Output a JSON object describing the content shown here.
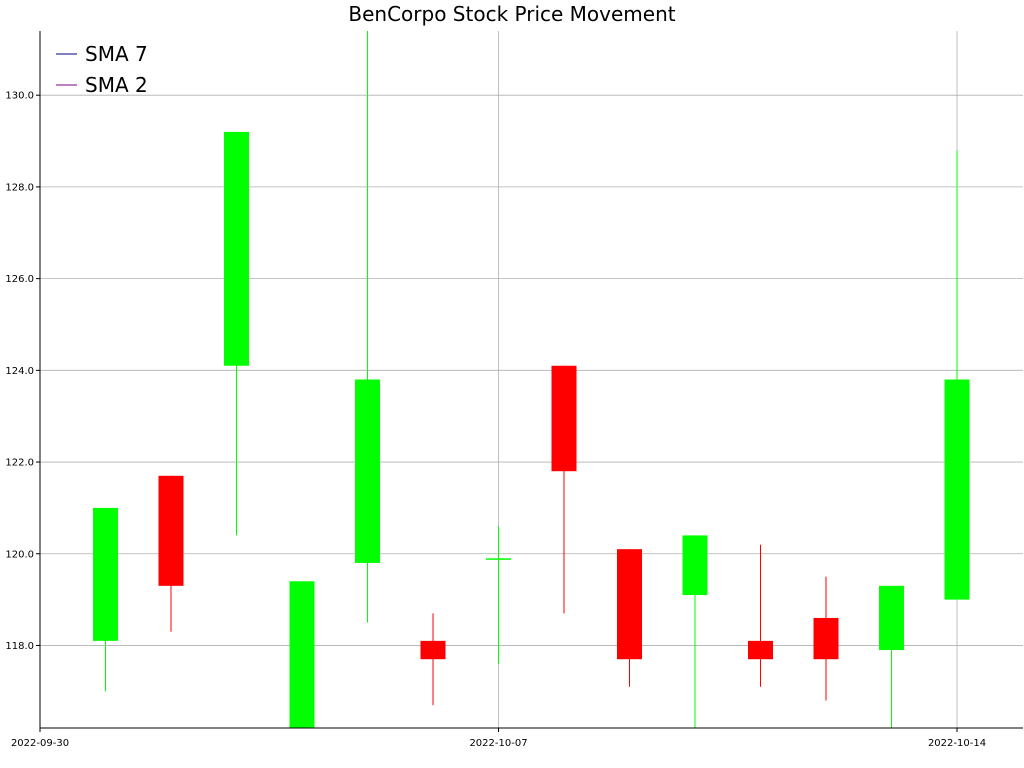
{
  "chart_data": {
    "type": "candlestick",
    "title": "BenCorpo Stock Price Movement",
    "xlabel": "",
    "ylabel": "",
    "ylim": [
      116.2,
      131.4
    ],
    "y_ticks": [
      118.0,
      120.0,
      122.0,
      124.0,
      126.0,
      128.0,
      130.0
    ],
    "y_tick_labels": [
      "118.0",
      "120.0",
      "122.0",
      "124.0",
      "126.0",
      "128.0",
      "130.0"
    ],
    "x_ticks": [
      "2022-09-30",
      "2022-10-07",
      "2022-10-14"
    ],
    "grid": true,
    "legend": {
      "placement": "top-left",
      "entries": [
        {
          "label": "SMA 7",
          "color": "#000080"
        },
        {
          "label": "SMA 2",
          "color": "#800080"
        }
      ]
    },
    "up_color": "#00ff00",
    "down_color": "#ff0000",
    "candles": [
      {
        "date": "2022-10-01",
        "open": 118.1,
        "high": 121.0,
        "low": 117.0,
        "close": 121.0
      },
      {
        "date": "2022-10-02",
        "open": 121.7,
        "high": 121.7,
        "low": 118.3,
        "close": 119.3
      },
      {
        "date": "2022-10-03",
        "open": 124.1,
        "high": 129.2,
        "low": 120.4,
        "close": 129.2
      },
      {
        "date": "2022-10-04",
        "open": 116.2,
        "high": 119.4,
        "low": 116.2,
        "close": 119.4
      },
      {
        "date": "2022-10-05",
        "open": 119.8,
        "high": 131.4,
        "low": 118.5,
        "close": 123.8
      },
      {
        "date": "2022-10-06",
        "open": 118.1,
        "high": 118.7,
        "low": 116.7,
        "close": 117.7
      },
      {
        "date": "2022-10-07",
        "open": 119.9,
        "high": 120.6,
        "low": 117.6,
        "close": 119.9
      },
      {
        "date": "2022-10-08",
        "open": 124.1,
        "high": 124.1,
        "low": 118.7,
        "close": 121.8
      },
      {
        "date": "2022-10-09",
        "open": 120.1,
        "high": 120.1,
        "low": 117.1,
        "close": 117.7
      },
      {
        "date": "2022-10-10",
        "open": 119.1,
        "high": 120.4,
        "low": 116.2,
        "close": 120.4
      },
      {
        "date": "2022-10-11",
        "open": 118.1,
        "high": 120.2,
        "low": 117.1,
        "close": 117.7
      },
      {
        "date": "2022-10-12",
        "open": 118.6,
        "high": 119.5,
        "low": 116.8,
        "close": 117.7
      },
      {
        "date": "2022-10-13",
        "open": 117.9,
        "high": 119.3,
        "low": 116.2,
        "close": 119.3
      },
      {
        "date": "2022-10-14",
        "open": 119.0,
        "high": 128.8,
        "low": 119.0,
        "close": 123.8
      }
    ]
  }
}
